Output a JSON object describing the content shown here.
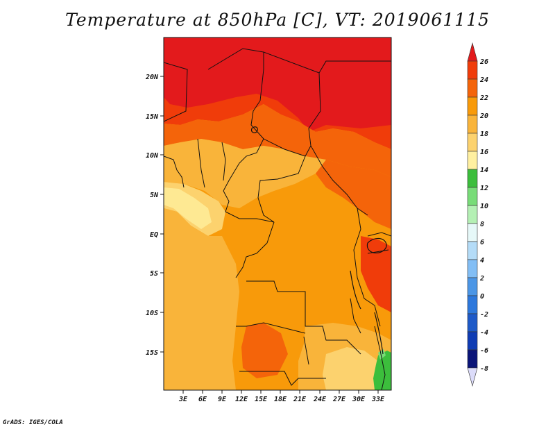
{
  "title": "Temperature at 850hPa [C], VT: 2019061115",
  "footer": "GrADS: IGES/COLA",
  "lat_labels": [
    "20N",
    "15N",
    "10N",
    "5N",
    "EQ",
    "5S",
    "10S",
    "15S"
  ],
  "lon_labels": [
    "3E",
    "6E",
    "9E",
    "12E",
    "15E",
    "18E",
    "21E",
    "24E",
    "27E",
    "30E",
    "33E"
  ],
  "colorbar": {
    "labels": [
      "26",
      "24",
      "22",
      "20",
      "18",
      "16",
      "14",
      "12",
      "10",
      "8",
      "6",
      "4",
      "2",
      "0",
      "-2",
      "-4",
      "-6",
      "-8"
    ],
    "colors": [
      "#e31a1c",
      "#f03c0a",
      "#f4640a",
      "#f89a0a",
      "#f9b43a",
      "#fcd26e",
      "#fff0a0",
      "#3cbe3c",
      "#78dc78",
      "#b4f0b4",
      "#e6f8f8",
      "#b4dcf8",
      "#82bef5",
      "#4b96e6",
      "#2d78dc",
      "#1e5ac8",
      "#0f3cb4",
      "#0a1478",
      "#dcdcfa"
    ]
  }
}
